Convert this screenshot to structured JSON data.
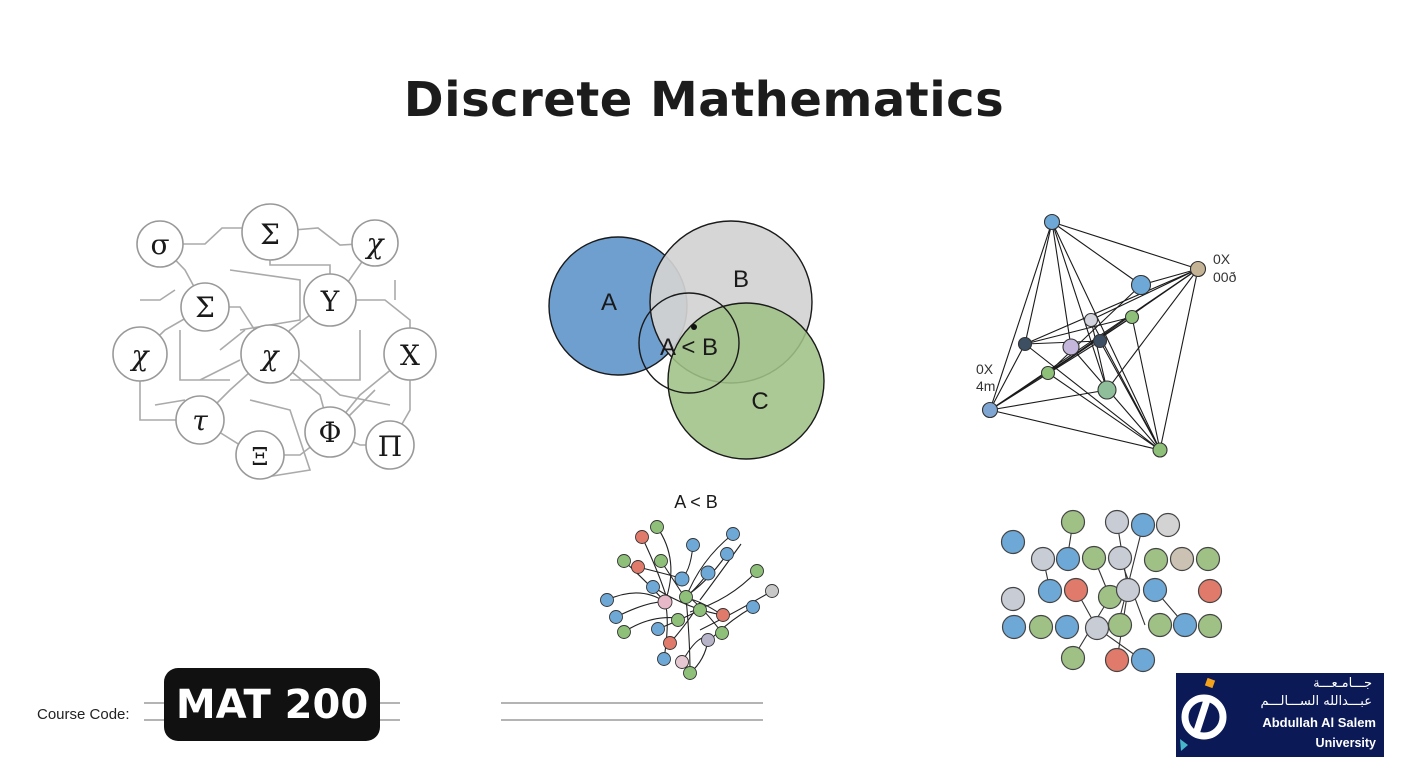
{
  "title": "Discrete Mathematics",
  "greek_nodes": [
    "σ",
    "Σ",
    "χ",
    "Σ",
    "Y",
    "χ",
    "χ",
    "X",
    "τ",
    "Φ",
    "Π",
    "Ξ"
  ],
  "venn": {
    "sets": [
      "A",
      "B",
      "C"
    ],
    "center_label": "A < B"
  },
  "network_labels": {
    "top_right": [
      "0X",
      "00ð"
    ],
    "left": [
      "0X",
      "4m"
    ]
  },
  "bottom_graph_label": "A < B",
  "course": {
    "label": "Course Code:",
    "code": "MAT 200"
  },
  "logo": {
    "arabic_line1": "جـــامـعـــة",
    "arabic_line2": "عبـــدالله الســـالـــم",
    "english_line1": "Abdullah Al Salem",
    "english_line2": "University"
  },
  "colors": {
    "blue": "#6e9fcf",
    "gray": "#d0d0d0",
    "green": "#9fc186",
    "logo_bg": "#0b1a57",
    "pill_bg": "#111111"
  }
}
